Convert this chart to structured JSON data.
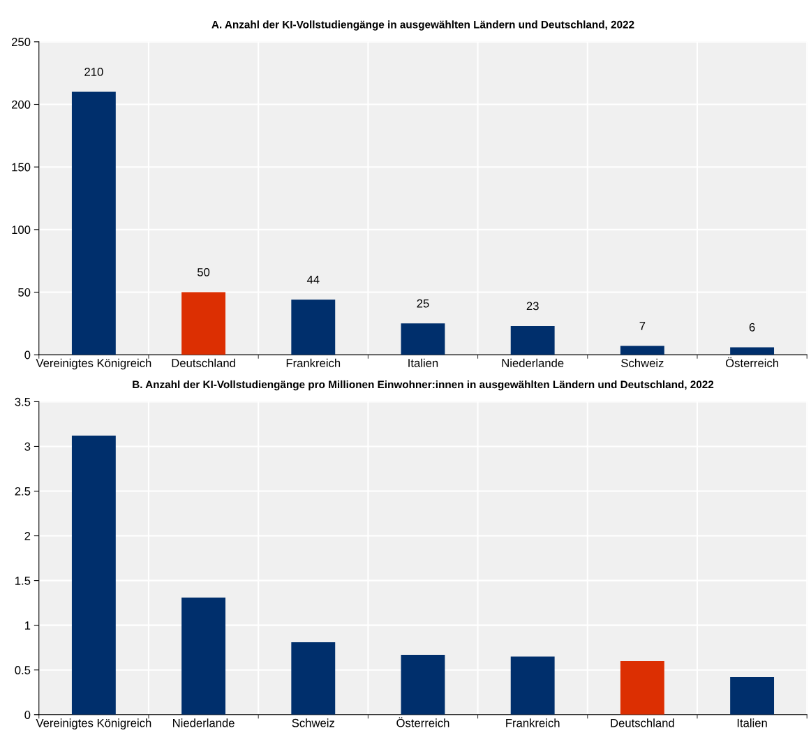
{
  "chart_data": [
    {
      "type": "bar",
      "title": "A. Anzahl der KI-Vollstudiengänge in ausgewählten Ländern und Deutschland, 2022",
      "categories": [
        "Vereinigtes Königreich",
        "Deutschland",
        "Frankreich",
        "Italien",
        "Niederlande",
        "Schweiz",
        "Österreich"
      ],
      "values": [
        210,
        50,
        44,
        25,
        23,
        7,
        6
      ],
      "colors": [
        "#002f6c",
        "#dc2f02",
        "#002f6c",
        "#002f6c",
        "#002f6c",
        "#002f6c",
        "#002f6c"
      ],
      "ylim": [
        0,
        250
      ],
      "yticks": [
        0,
        50,
        100,
        150,
        200,
        250
      ],
      "grid": true,
      "data_labels": true
    },
    {
      "type": "bar",
      "title": "B. Anzahl der KI-Vollstudiengänge pro Millionen Einwohner:innen in ausgewählten Ländern und Deutschland, 2022",
      "categories": [
        "Vereinigtes Königreich",
        "Niederlande",
        "Schweiz",
        "Österreich",
        "Frankreich",
        "Deutschland",
        "Italien"
      ],
      "values": [
        3.12,
        1.31,
        0.81,
        0.67,
        0.65,
        0.6,
        0.42
      ],
      "colors": [
        "#002f6c",
        "#002f6c",
        "#002f6c",
        "#002f6c",
        "#002f6c",
        "#dc2f02",
        "#002f6c"
      ],
      "ylim": [
        0,
        3.5
      ],
      "yticks": [
        0,
        0.5,
        1,
        1.5,
        2,
        2.5,
        3,
        3.5
      ],
      "grid": true
    }
  ]
}
